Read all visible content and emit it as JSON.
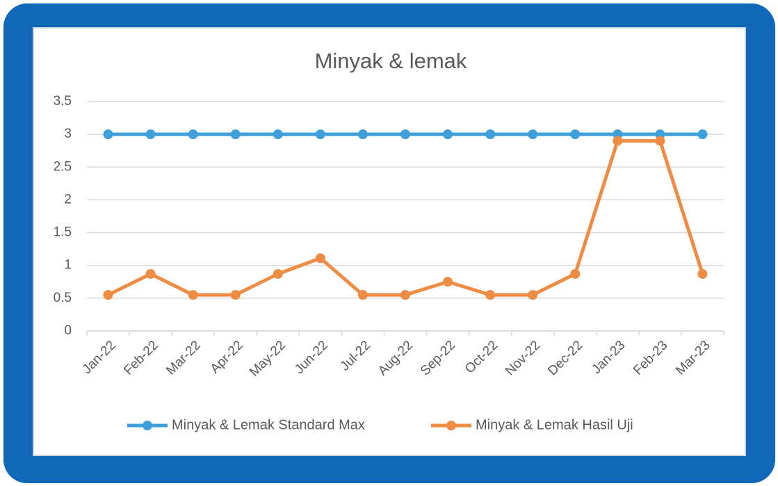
{
  "chart_data": {
    "type": "line",
    "title": "Minyak & lemak",
    "categories": [
      "Jan-22",
      "Feb-22",
      "Mar-22",
      "Apr-22",
      "May-22",
      "Jun-22",
      "Jul-22",
      "Aug-22",
      "Sep-22",
      "Oct-22",
      "Nov-22",
      "Dec-22",
      "Jan-23",
      "Feb-23",
      "Mar-23"
    ],
    "series": [
      {
        "name": "Minyak & Lemak Standard Max",
        "color": "#3e9fda",
        "values": [
          3,
          3,
          3,
          3,
          3,
          3,
          3,
          3,
          3,
          3,
          3,
          3,
          3,
          3,
          3
        ]
      },
      {
        "name": "Minyak & Lemak Hasil Uji",
        "color": "#ee8c43",
        "values": [
          0.55,
          0.87,
          0.55,
          0.55,
          0.87,
          1.11,
          0.55,
          0.55,
          0.75,
          0.55,
          0.55,
          0.87,
          2.9,
          2.9,
          0.87
        ]
      }
    ],
    "ylim": [
      0,
      3.5
    ],
    "yticks": [
      0,
      0.5,
      1,
      1.5,
      2,
      2.5,
      3,
      3.5
    ],
    "grid": true,
    "legend": "bottom"
  }
}
